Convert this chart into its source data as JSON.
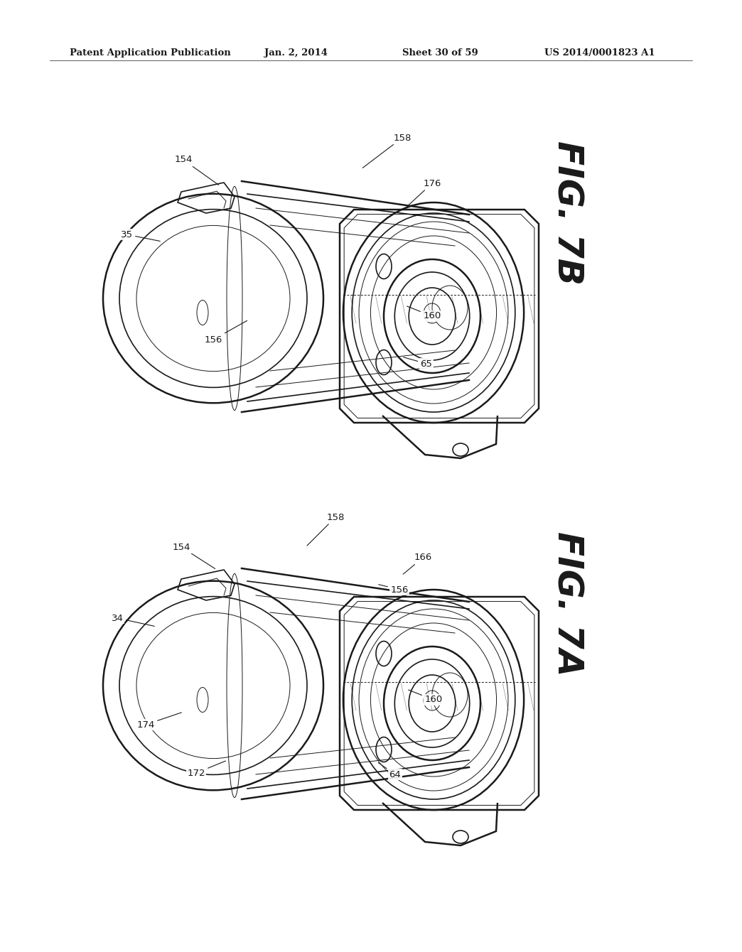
{
  "bg_color": "#ffffff",
  "line_color": "#1a1a1a",
  "header_text": "Patent Application Publication",
  "header_date": "Jan. 2, 2014",
  "header_sheet": "Sheet 30 of 59",
  "header_patent": "US 2014/0001823 A1",
  "fig_top_label": "FIG. 7B",
  "fig_bot_label": "FIG. 7A",
  "lw_heavy": 1.8,
  "lw_med": 1.2,
  "lw_thin": 0.7
}
